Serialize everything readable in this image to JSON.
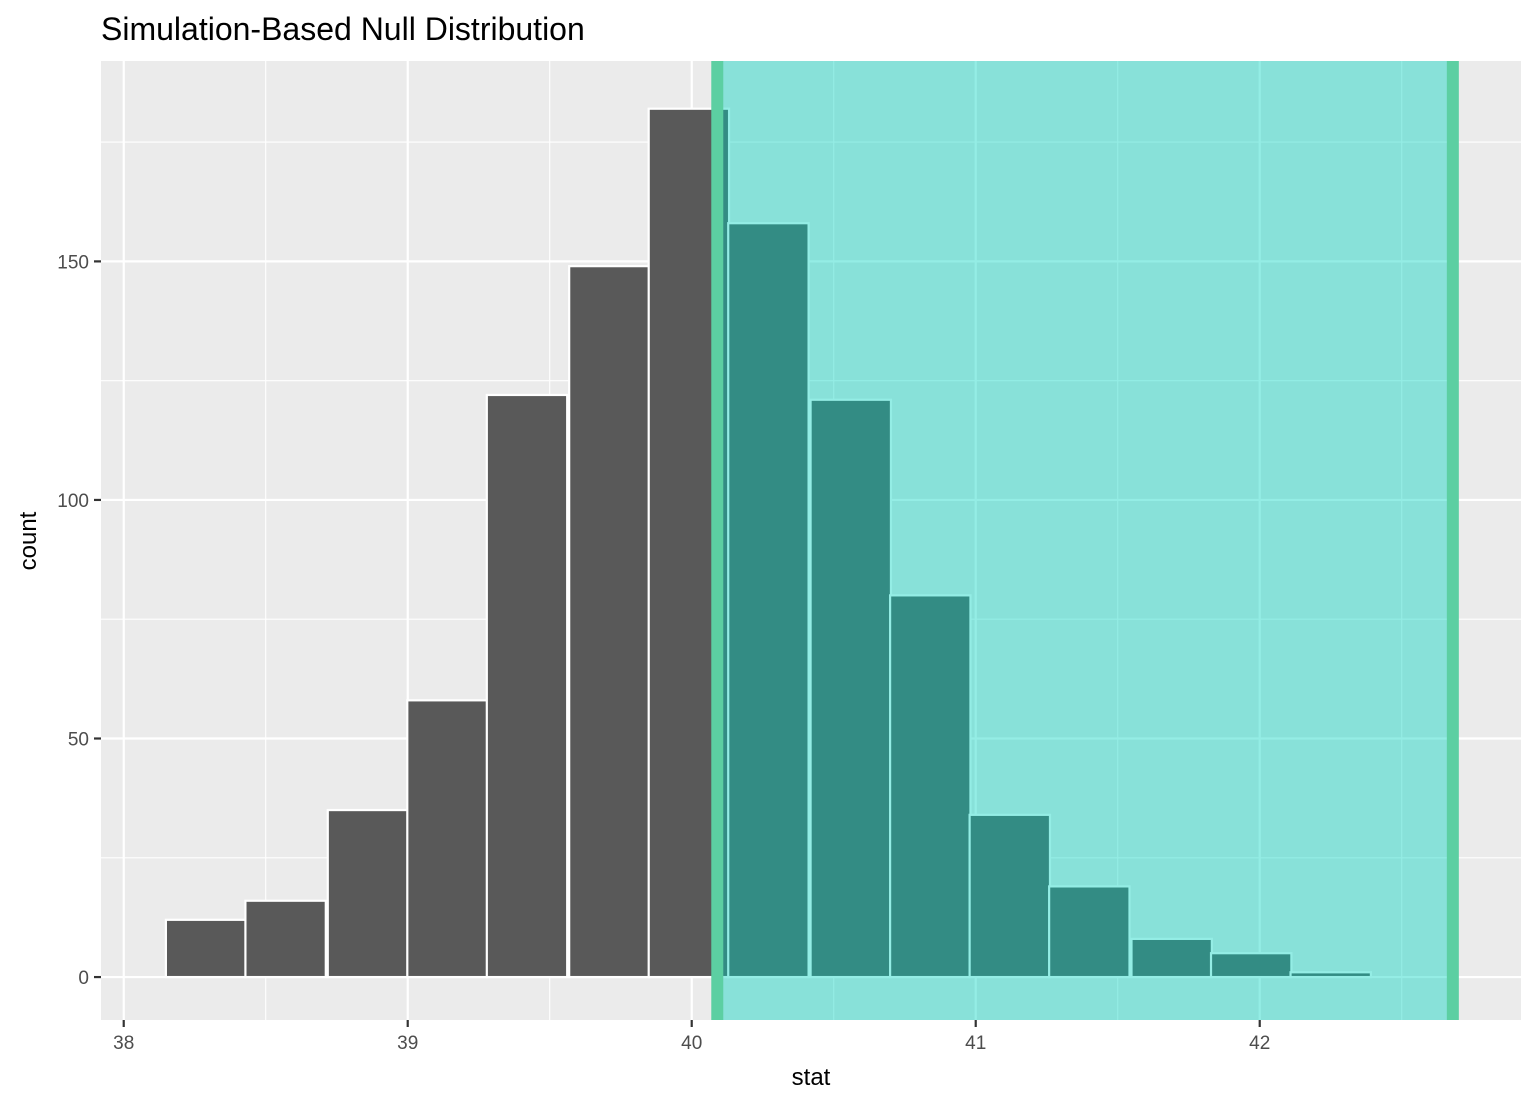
{
  "chart_data": {
    "type": "bar",
    "title": "Simulation-Based Null Distribution",
    "xlabel": "stat",
    "ylabel": "count",
    "xlim": [
      37.92,
      42.92
    ],
    "ylim": [
      -9,
      192
    ],
    "x_ticks": [
      38,
      39,
      40,
      41,
      42
    ],
    "y_ticks": [
      0,
      50,
      100,
      150
    ],
    "grid": true,
    "bin_width": 0.283,
    "bins": [
      {
        "center": 38.29,
        "count": 12
      },
      {
        "center": 38.57,
        "count": 16
      },
      {
        "center": 38.86,
        "count": 35
      },
      {
        "center": 39.14,
        "count": 58
      },
      {
        "center": 39.42,
        "count": 122
      },
      {
        "center": 39.71,
        "count": 149
      },
      {
        "center": 39.99,
        "count": 182
      },
      {
        "center": 40.27,
        "count": 158
      },
      {
        "center": 40.56,
        "count": 121
      },
      {
        "center": 40.84,
        "count": 80
      },
      {
        "center": 41.12,
        "count": 34
      },
      {
        "center": 41.4,
        "count": 19
      },
      {
        "center": 41.69,
        "count": 8
      },
      {
        "center": 41.97,
        "count": 5
      },
      {
        "center": 42.25,
        "count": 1
      }
    ],
    "shaded_region": {
      "from": 40.09,
      "to": 42.68
    },
    "colors": {
      "bar_fill": "#595959",
      "bar_outline": "#ffffff",
      "panel_bg": "#ebebeb",
      "grid_major": "#ffffff",
      "shade_fill": "#00d5c0",
      "shade_opacity": 0.42,
      "bound_line": "#5ccfa2"
    }
  }
}
